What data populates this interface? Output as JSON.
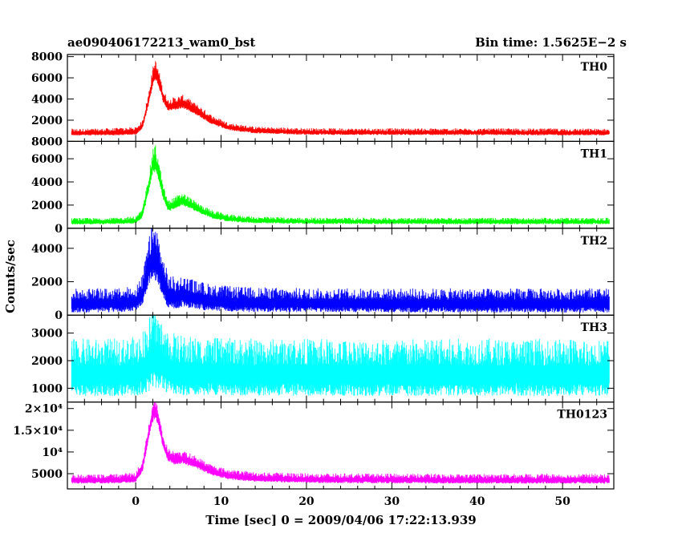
{
  "header": {
    "left": "ae090406172213_wam0_bst",
    "right": "Bin time: 1.5625E−2 s"
  },
  "chart_data": {
    "type": "line",
    "title": "ae090406172213_wam0_bst",
    "subtitle": "Bin time: 1.5625E−2 s",
    "xlabel": "Time [sec] 0 = 2009/04/06 17:22:13.939",
    "ylabel": "Counts/sec",
    "xlim": [
      -8,
      56
    ],
    "x_ticks": [
      "0",
      "10",
      "20",
      "30",
      "40",
      "50"
    ],
    "x_tick_values": [
      0,
      10,
      20,
      30,
      40,
      50
    ],
    "grid": false,
    "panels": [
      {
        "name": "TH0",
        "color": "#ff0000",
        "ylim": [
          0,
          8200
        ],
        "y_ticks": [
          {
            "value": 2000,
            "label": "2000"
          },
          {
            "value": 4000,
            "label": "4000"
          },
          {
            "value": 6000,
            "label": "6000"
          },
          {
            "value": 8000,
            "label": "8000"
          }
        ],
        "series": {
          "x": [
            -7.5,
            -5,
            -2,
            0,
            0.8,
            1.5,
            2.0,
            2.3,
            2.7,
            3.2,
            3.8,
            4.5,
            5.5,
            6.5,
            7.5,
            9,
            11,
            14,
            20,
            30,
            40,
            50,
            55.5
          ],
          "baseline": [
            800,
            800,
            830,
            900,
            1500,
            3800,
            5900,
            6500,
            5800,
            4200,
            3300,
            3400,
            3600,
            3200,
            2700,
            1900,
            1300,
            1000,
            860,
            840,
            830,
            820,
            810
          ],
          "spread": [
            400,
            400,
            450,
            450,
            500,
            800,
            1100,
            1300,
            1000,
            800,
            700,
            800,
            800,
            700,
            650,
            550,
            450,
            400,
            400,
            400,
            400,
            400,
            400
          ]
        }
      },
      {
        "name": "TH1",
        "color": "#00ff00",
        "ylim": [
          0,
          7500
        ],
        "y_ticks": [
          {
            "value": 0,
            "label": "0"
          },
          {
            "value": 2000,
            "label": "2000"
          },
          {
            "value": 4000,
            "label": "4000"
          },
          {
            "value": 6000,
            "label": "6000"
          },
          {
            "value": 8000,
            "label": "8000"
          }
        ],
        "series": {
          "x": [
            -7.5,
            -5,
            -2,
            0,
            0.8,
            1.5,
            2.0,
            2.3,
            2.7,
            3.2,
            3.8,
            4.5,
            5.5,
            6.5,
            7.5,
            9,
            11,
            14,
            20,
            30,
            40,
            50,
            55.5
          ],
          "baseline": [
            550,
            550,
            570,
            650,
            1200,
            3600,
            5500,
            5800,
            4800,
            3000,
            1800,
            2000,
            2400,
            2000,
            1600,
            1100,
            800,
            650,
            580,
            570,
            560,
            560,
            560
          ],
          "spread": [
            350,
            350,
            350,
            400,
            500,
            900,
            1300,
            1500,
            1100,
            800,
            600,
            700,
            700,
            600,
            500,
            450,
            400,
            350,
            350,
            350,
            350,
            350,
            350
          ]
        }
      },
      {
        "name": "TH2",
        "color": "#0000ff",
        "ylim": [
          0,
          5200
        ],
        "y_ticks": [
          {
            "value": 0,
            "label": "0"
          },
          {
            "value": 2000,
            "label": "2000"
          },
          {
            "value": 4000,
            "label": "4000"
          }
        ],
        "series": {
          "x": [
            -7.5,
            -5,
            -2,
            0,
            0.8,
            1.5,
            2.0,
            2.3,
            2.7,
            3.2,
            3.8,
            4.5,
            5.5,
            7,
            9,
            12,
            20,
            30,
            40,
            50,
            55.5
          ],
          "baseline": [
            700,
            700,
            720,
            800,
            1300,
            2800,
            3500,
            3400,
            2900,
            2000,
            1200,
            1100,
            1200,
            1000,
            850,
            750,
            720,
            700,
            700,
            700,
            700
          ],
          "spread": [
            900,
            900,
            900,
            950,
            1100,
            1700,
            2100,
            2200,
            1900,
            1500,
            1300,
            1200,
            1200,
            1100,
            1000,
            950,
            900,
            900,
            900,
            900,
            900
          ]
        }
      },
      {
        "name": "TH3",
        "color": "#00ffff",
        "ylim": [
          500,
          3650
        ],
        "y_ticks": [
          {
            "value": 1000,
            "label": "1000"
          },
          {
            "value": 2000,
            "label": "2000"
          },
          {
            "value": 3000,
            "label": "3000"
          }
        ],
        "series": {
          "x": [
            -7.5,
            -5,
            -2,
            0,
            1.0,
            1.8,
            2.3,
            3.0,
            4.0,
            6,
            10,
            20,
            30,
            40,
            50,
            55.5
          ],
          "baseline": [
            1500,
            1500,
            1500,
            1520,
            1700,
            2000,
            2100,
            1900,
            1650,
            1550,
            1520,
            1500,
            1500,
            1500,
            1500,
            1500
          ],
          "spread": [
            1300,
            1300,
            1300,
            1350,
            1500,
            1800,
            1900,
            1600,
            1400,
            1350,
            1300,
            1300,
            1300,
            1300,
            1300,
            1300
          ]
        }
      },
      {
        "name": "TH0123",
        "color": "#ff00ff",
        "ylim": [
          1500,
          21500
        ],
        "y_ticks": [
          {
            "value": 5000,
            "label": "5000"
          },
          {
            "value": 10000,
            "label": "10⁴"
          },
          {
            "value": 15000,
            "label": "1.5×10⁴"
          },
          {
            "value": 20000,
            "label": "2×10⁴"
          }
        ],
        "series": {
          "x": [
            -7.5,
            -5,
            -2,
            0,
            0.8,
            1.5,
            2.0,
            2.3,
            2.7,
            3.2,
            3.8,
            4.5,
            5.5,
            6.5,
            7.5,
            9,
            11,
            14,
            20,
            30,
            40,
            50,
            55.5
          ],
          "baseline": [
            3500,
            3500,
            3600,
            3900,
            6500,
            14000,
            18500,
            19500,
            17000,
            12000,
            9000,
            8200,
            8400,
            7800,
            6900,
            5500,
            4500,
            4000,
            3700,
            3600,
            3550,
            3550,
            3550
          ],
          "spread": [
            1300,
            1300,
            1400,
            1500,
            1800,
            2400,
            2800,
            3000,
            2600,
            2100,
            1900,
            1900,
            1900,
            1800,
            1700,
            1600,
            1500,
            1400,
            1400,
            1400,
            1400,
            1400,
            1400
          ]
        }
      }
    ]
  }
}
